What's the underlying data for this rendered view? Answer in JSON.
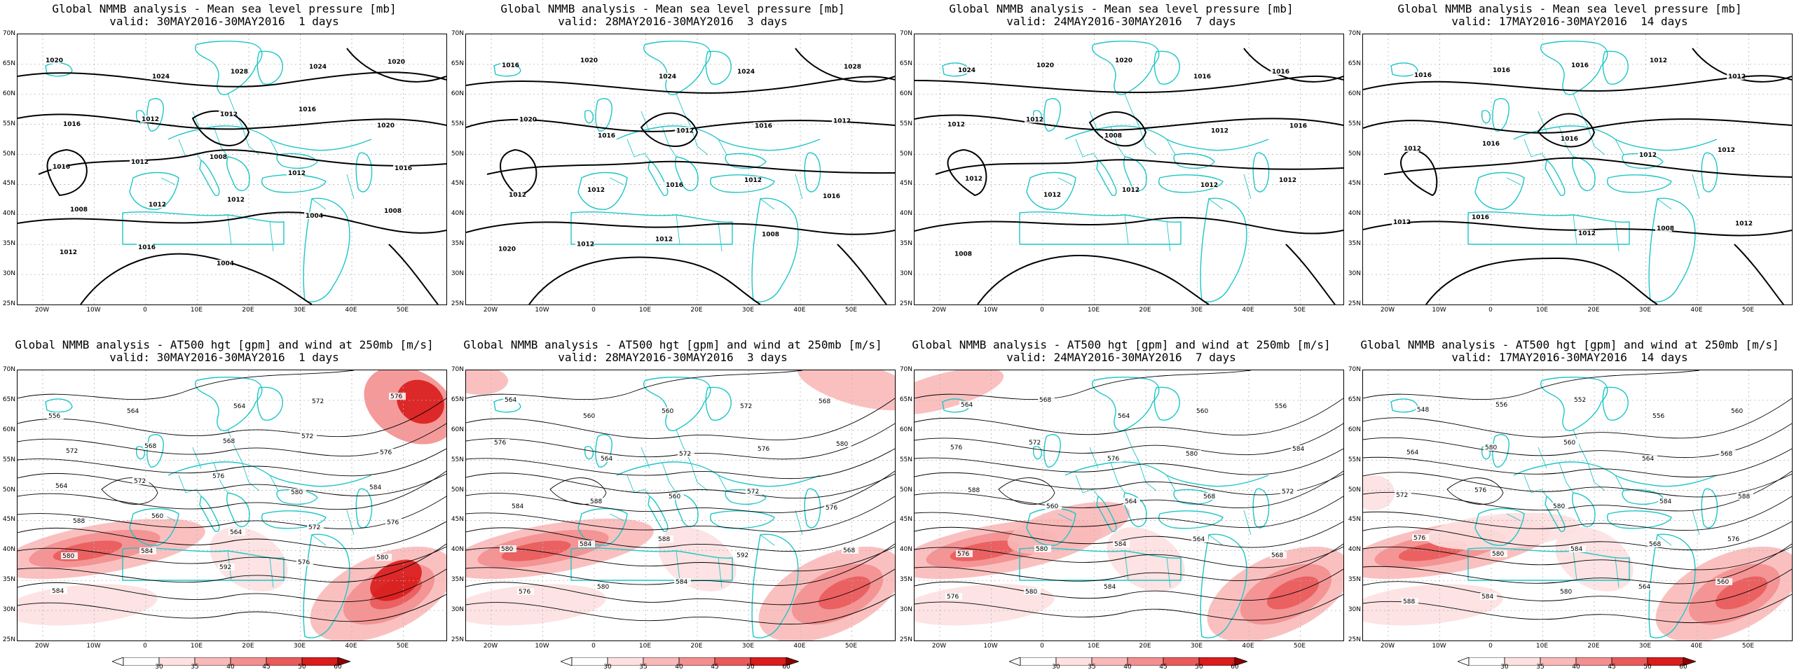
{
  "colors": {
    "coast": "#1fc6c6",
    "grid": "#b4b4b4",
    "contour": "#000000",
    "wind_shades": [
      "#ffffff",
      "#fde0e0",
      "#f9b9b9",
      "#f38f8f",
      "#ea5a5a",
      "#d91c1c",
      "#8e0000"
    ]
  },
  "axes": {
    "lat_labels": [
      "70N",
      "65N",
      "60N",
      "55N",
      "50N",
      "45N",
      "40N",
      "35N",
      "30N",
      "25N"
    ],
    "lon_labels": [
      "20W",
      "10W",
      "0",
      "10E",
      "20E",
      "30E",
      "40E",
      "50E"
    ]
  },
  "colorbar": {
    "labels": [
      "30",
      "35",
      "40",
      "45",
      "50",
      "60"
    ]
  },
  "panels": [
    {
      "title": "Global NMMB analysis - Mean sea level pressure [mb]",
      "valid": "valid: 30MAY2016-30MAY2016  1 days",
      "kind": "mslp",
      "contour_labels": [
        "1020",
        "1024",
        "1028",
        "1024",
        "1020",
        "1016",
        "1012",
        "1012",
        "1016",
        "1020",
        "1016",
        "1012",
        "1008",
        "1012",
        "1016",
        "1008",
        "1012",
        "1012",
        "1004",
        "1008",
        "1012",
        "1016",
        "1004"
      ]
    },
    {
      "title": "Global NMMB analysis - Mean sea level pressure [mb]",
      "valid": "valid: 28MAY2016-30MAY2016  3 days",
      "kind": "mslp",
      "contour_labels": [
        "1016",
        "1020",
        "1024",
        "1024",
        "1028",
        "1020",
        "1016",
        "1012",
        "1016",
        "1012",
        "1012",
        "1012",
        "1016",
        "1012",
        "1016",
        "1020",
        "1012",
        "1012",
        "1008"
      ]
    },
    {
      "title": "Global NMMB analysis - Mean sea level pressure [mb]",
      "valid": "valid: 24MAY2016-30MAY2016  7 days",
      "kind": "mslp",
      "contour_labels": [
        "1024",
        "1020",
        "1020",
        "1016",
        "1016",
        "1012",
        "1012",
        "1008",
        "1012",
        "1016",
        "1012",
        "1012",
        "1012",
        "1012",
        "1012",
        "1008"
      ]
    },
    {
      "title": "Global NMMB analysis - Mean sea level pressure [mb]",
      "valid": "valid: 17MAY2016-30MAY2016  14 days",
      "kind": "mslp",
      "contour_labels": [
        "1016",
        "1016",
        "1016",
        "1012",
        "1012",
        "1012",
        "1016",
        "1016",
        "1012",
        "1012",
        "1012",
        "1016",
        "1012",
        "1008",
        "1012"
      ]
    },
    {
      "title": "Global NMMB analysis - AT500 hgt [gpm] and wind at 250mb [m/s]",
      "valid": "valid: 30MAY2016-30MAY2016  1 days",
      "kind": "z500",
      "contour_labels": [
        "556",
        "564",
        "564",
        "572",
        "576",
        "572",
        "568",
        "568",
        "572",
        "576",
        "564",
        "572",
        "576",
        "580",
        "584",
        "588",
        "560",
        "564",
        "572",
        "576",
        "580",
        "584",
        "592",
        "576",
        "580",
        "584"
      ]
    },
    {
      "title": "Global NMMB analysis - AT500 hgt [gpm] and wind at 250mb [m/s]",
      "valid": "valid: 28MAY2016-30MAY2016  3 days",
      "kind": "z500",
      "contour_labels": [
        "564",
        "560",
        "560",
        "572",
        "568",
        "576",
        "564",
        "572",
        "576",
        "580",
        "584",
        "588",
        "560",
        "572",
        "576",
        "580",
        "584",
        "588",
        "592",
        "568",
        "576",
        "580",
        "584"
      ]
    },
    {
      "title": "Global NMMB analysis - AT500 hgt [gpm] and wind at 250mb [m/s]",
      "valid": "valid: 24MAY2016-30MAY2016  7 days",
      "kind": "z500",
      "contour_labels": [
        "564",
        "568",
        "564",
        "560",
        "556",
        "576",
        "572",
        "576",
        "580",
        "584",
        "588",
        "560",
        "564",
        "568",
        "572",
        "576",
        "580",
        "584",
        "564",
        "568",
        "576",
        "580",
        "584"
      ]
    },
    {
      "title": "Global NMMB analysis - AT500 hgt [gpm] and wind at 250mb [m/s]",
      "valid": "valid: 17MAY2016-30MAY2016  14 days",
      "kind": "z500",
      "contour_labels": [
        "548",
        "556",
        "552",
        "556",
        "560",
        "564",
        "580",
        "560",
        "564",
        "568",
        "572",
        "576",
        "580",
        "584",
        "588",
        "576",
        "580",
        "584",
        "568",
        "576",
        "588",
        "584",
        "580",
        "564",
        "560"
      ]
    }
  ]
}
